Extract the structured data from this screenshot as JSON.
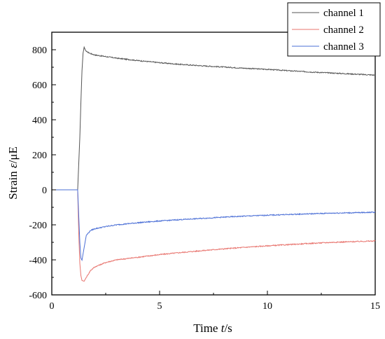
{
  "chart_data": {
    "type": "line",
    "xlabel_prefix": "Time ",
    "xlabel_var": "t",
    "xlabel_unit": "/s",
    "ylabel_prefix": "Strain ",
    "ylabel_var": "ε",
    "ylabel_unit": "/μE",
    "xlim": [
      0,
      15
    ],
    "ylim": [
      -600,
      900
    ],
    "x_ticks": [
      0,
      5,
      10,
      15
    ],
    "y_ticks": [
      -600,
      -400,
      -200,
      0,
      200,
      400,
      600,
      800
    ],
    "grid": false,
    "legend_position": "top-right",
    "series": [
      {
        "name": "channel 1",
        "color": "#555555",
        "x": [
          0,
          1.2,
          1.3,
          1.35,
          1.4,
          1.45,
          1.5,
          1.55,
          1.6,
          1.8,
          2.0,
          3,
          4,
          5,
          6,
          7,
          8,
          9,
          10,
          11,
          12,
          13,
          14,
          15
        ],
        "y": [
          0,
          0,
          300,
          500,
          680,
          780,
          815,
          800,
          790,
          778,
          770,
          752,
          738,
          726,
          716,
          708,
          701,
          694,
          688,
          680,
          673,
          667,
          661,
          655
        ]
      },
      {
        "name": "channel 2",
        "color": "#e8746e",
        "x": [
          0,
          1.2,
          1.25,
          1.3,
          1.35,
          1.4,
          1.5,
          1.6,
          1.8,
          2.0,
          2.5,
          3,
          4,
          5,
          6,
          7,
          8,
          9,
          10,
          11,
          12,
          13,
          14,
          15
        ],
        "y": [
          0,
          0,
          -250,
          -420,
          -490,
          -518,
          -522,
          -500,
          -460,
          -440,
          -415,
          -400,
          -385,
          -370,
          -358,
          -347,
          -337,
          -328,
          -320,
          -313,
          -306,
          -300,
          -296,
          -292
        ]
      },
      {
        "name": "channel 3",
        "color": "#4b6fd6",
        "x": [
          0,
          1.2,
          1.25,
          1.3,
          1.35,
          1.4,
          1.5,
          1.6,
          1.8,
          2.0,
          2.5,
          3,
          4,
          5,
          6,
          7,
          8,
          9,
          10,
          11,
          12,
          13,
          14,
          15
        ],
        "y": [
          0,
          0,
          -150,
          -300,
          -390,
          -402,
          -330,
          -260,
          -232,
          -222,
          -210,
          -200,
          -188,
          -178,
          -170,
          -163,
          -156,
          -150,
          -145,
          -141,
          -137,
          -133,
          -131,
          -128
        ]
      }
    ]
  }
}
